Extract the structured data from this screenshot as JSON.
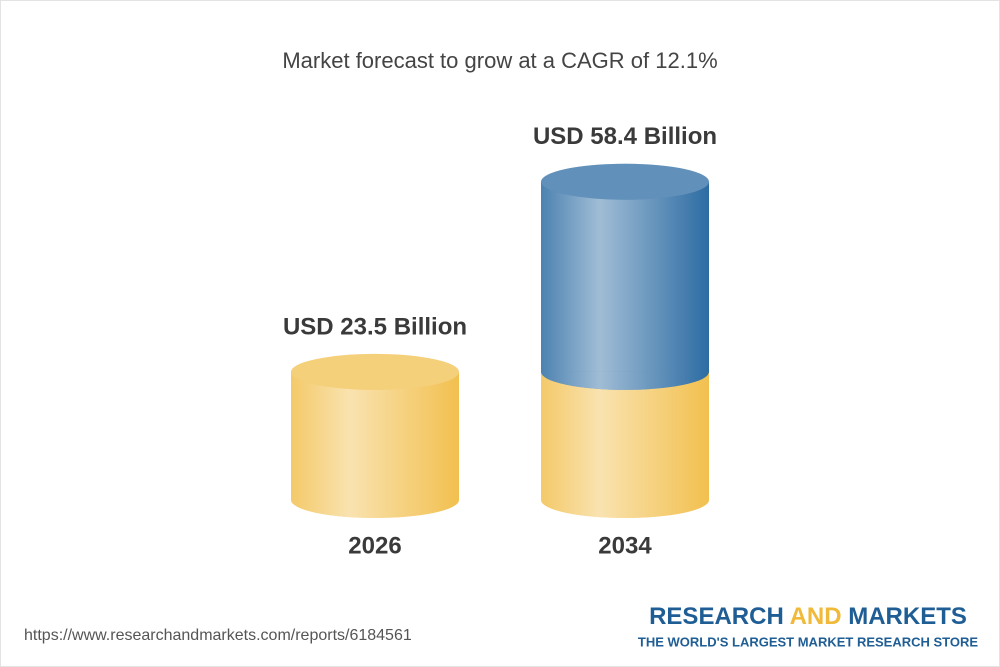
{
  "chart_data": {
    "type": "cylinder",
    "title": "Market forecast to grow at a CAGR of 12.1%",
    "categories": [
      "2026",
      "2034"
    ],
    "values": [
      23.5,
      58.4
    ],
    "value_labels": [
      "USD 23.5 Billion",
      "USD 58.4 Billion"
    ],
    "colors": [
      "#f2c04f",
      "#2d6ca3"
    ]
  },
  "footer": {
    "url": "https://www.researchandmarkets.com/reports/6184561",
    "brand": [
      "RESEARCH",
      "AND",
      "MARKETS"
    ],
    "tagline": "THE WORLD'S LARGEST MARKET RESEARCH STORE"
  }
}
